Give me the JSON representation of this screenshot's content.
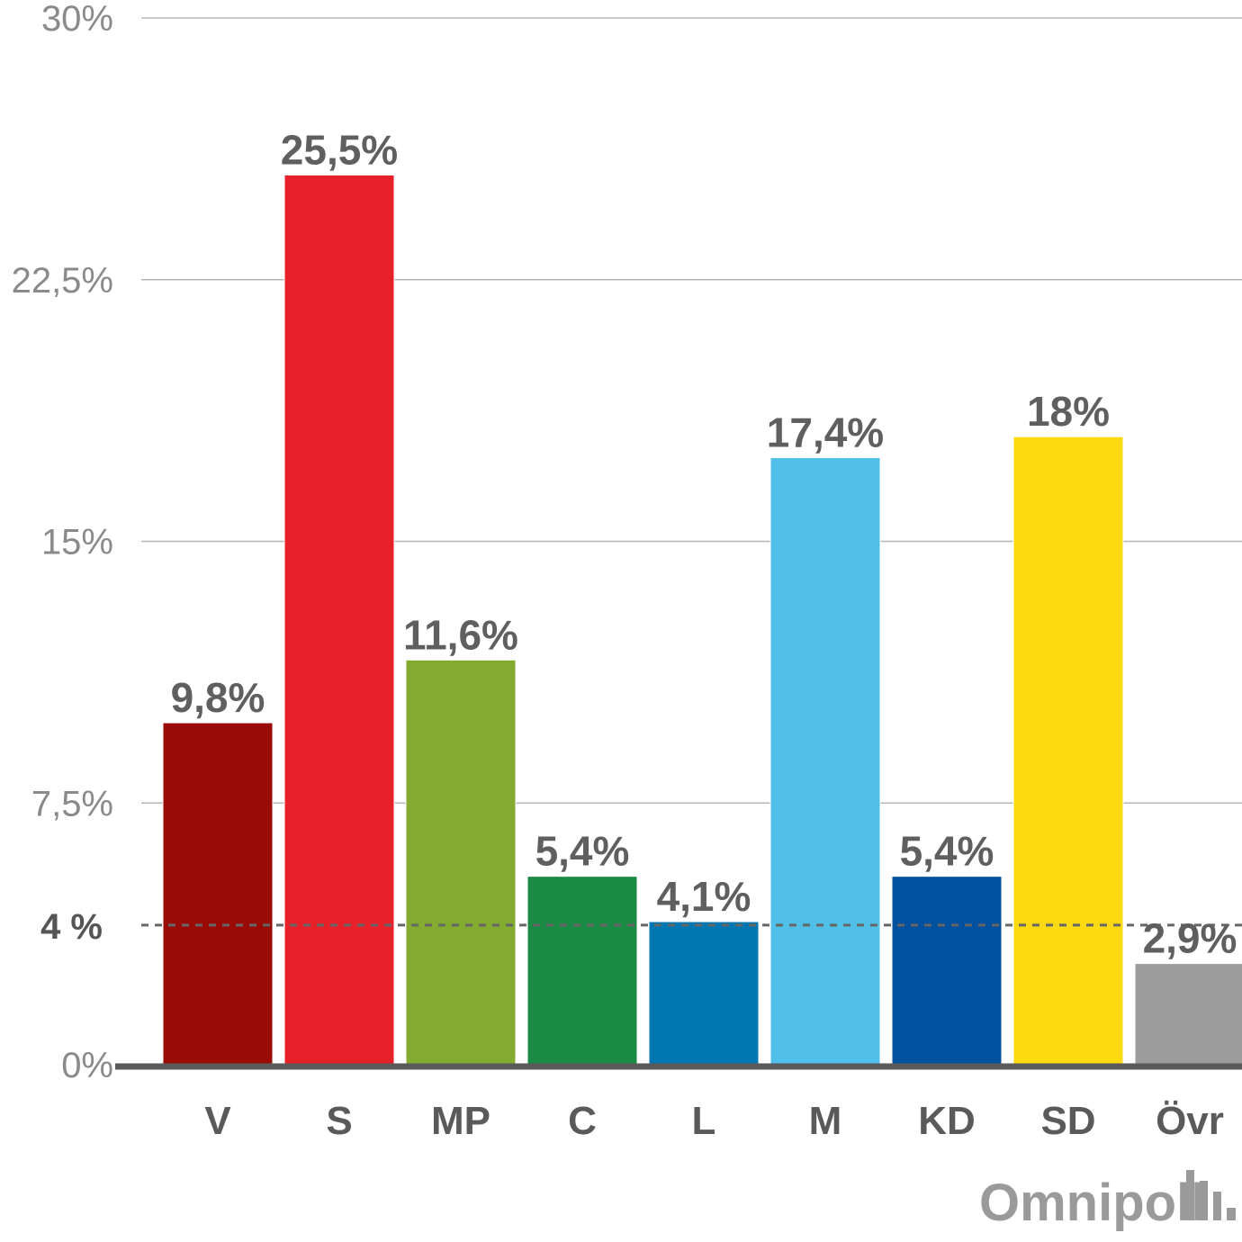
{
  "chart_data": {
    "type": "bar",
    "categories": [
      "V",
      "S",
      "MP",
      "C",
      "L",
      "M",
      "KD",
      "SD",
      "Övr"
    ],
    "values": [
      9.8,
      25.5,
      11.6,
      5.4,
      4.1,
      17.4,
      5.4,
      18,
      2.9
    ],
    "value_labels": [
      "9,8%",
      "25,5%",
      "11,6%",
      "5,4%",
      "4,1%",
      "17,4%",
      "5,4%",
      "18%",
      "2,9%"
    ],
    "colors": [
      "#9b0b05",
      "#e8202a",
      "#83ab30",
      "#1b8a44",
      "#0077b0",
      "#50bfea",
      "#0051a0",
      "#fdd912",
      "#9c9c9c"
    ],
    "ylim": [
      0,
      30
    ],
    "y_ticks": [
      {
        "value": 0,
        "label": "0%"
      },
      {
        "value": 7.5,
        "label": "7,5%"
      },
      {
        "value": 15,
        "label": "15%"
      },
      {
        "value": 22.5,
        "label": "22,5%"
      },
      {
        "value": 30,
        "label": "30%"
      }
    ],
    "threshold": {
      "value": 4,
      "label": "4 %",
      "style": "dashed"
    },
    "grid": true,
    "legend": "none"
  },
  "branding": {
    "logo_text": "Omnipoll",
    "logo_icon": "bar-signal-icon"
  }
}
